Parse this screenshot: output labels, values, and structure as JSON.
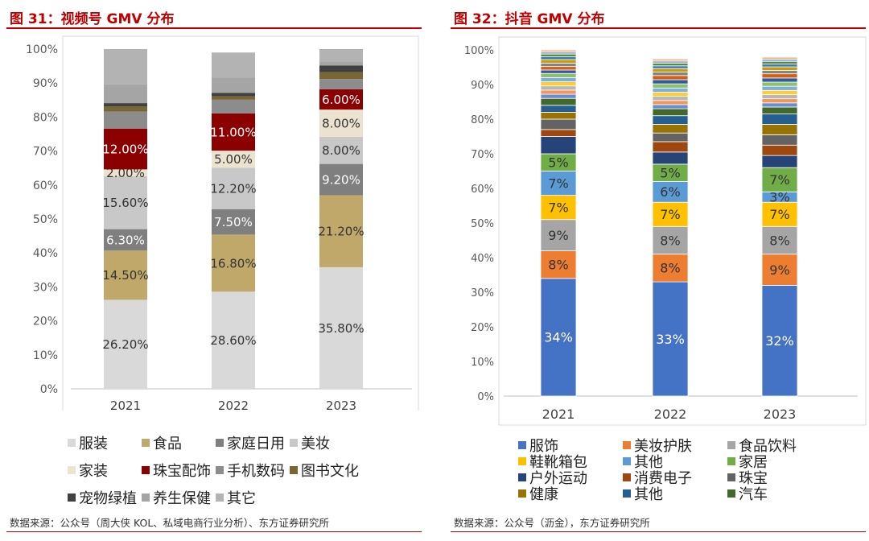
{
  "left": {
    "title": "图 31：视频号 GMV 分布",
    "source": "数据来源：公众号（周大侠 KOL、私域电商行业分析）、东方证券研究所",
    "legend": [
      "服装",
      "食品",
      "家庭日用",
      "美妆",
      "家装",
      "珠宝配饰",
      "手机数码",
      "图书文化",
      "宠物绿植",
      "养生保健",
      "其它"
    ],
    "chart_data": {
      "type": "bar",
      "stacked": true,
      "ylim": [
        0,
        100
      ],
      "yticks": [
        "0%",
        "10%",
        "20%",
        "30%",
        "40%",
        "50%",
        "60%",
        "70%",
        "80%",
        "90%",
        "100%"
      ],
      "categories": [
        "2021",
        "2022",
        "2023"
      ],
      "series": [
        {
          "name": "服装",
          "color": "#d9d9d9",
          "values": [
            26.2,
            28.6,
            35.8
          ],
          "labels": [
            "26.20%",
            "28.60%",
            "35.80%"
          ],
          "label_color": "#333333"
        },
        {
          "name": "食品",
          "color": "#bfa86a",
          "values": [
            14.5,
            16.8,
            21.2
          ],
          "labels": [
            "14.50%",
            "16.80%",
            "21.20%"
          ],
          "label_color": "#333333"
        },
        {
          "name": "家庭日用",
          "color": "#7f7f7f",
          "values": [
            6.3,
            7.5,
            9.2
          ],
          "labels": [
            "6.30%",
            "7.50%",
            "9.20%"
          ],
          "label_color": "#ffffff"
        },
        {
          "name": "美妆",
          "color": "#c8c8c8",
          "values": [
            15.6,
            12.2,
            8.0
          ],
          "labels": [
            "15.60%",
            "12.20%",
            "8.00%"
          ],
          "label_color": "#333333"
        },
        {
          "name": "家装",
          "color": "#ebe3cf",
          "values": [
            2.0,
            5.0,
            8.0
          ],
          "labels": [
            "2.00%",
            "5.00%",
            "8.00%"
          ],
          "label_color": "#333333"
        },
        {
          "name": "珠宝配饰",
          "color": "#8b0000",
          "values": [
            12.0,
            11.0,
            6.0
          ],
          "labels": [
            "12.00%",
            "11.00%",
            "6.00%"
          ],
          "label_color": "#ffffff"
        },
        {
          "name": "手机数码",
          "color": "#8c8c8c",
          "values": [
            5.0,
            4.0,
            3.0
          ],
          "labels": [
            "",
            "",
            ""
          ],
          "label_color": "#333333"
        },
        {
          "name": "图书文化",
          "color": "#7a6534",
          "values": [
            1.5,
            1.0,
            2.0
          ],
          "labels": [
            "",
            "",
            ""
          ],
          "label_color": "#333333"
        },
        {
          "name": "宠物绿植",
          "color": "#404040",
          "values": [
            1.0,
            1.0,
            2.0
          ],
          "labels": [
            "",
            "",
            ""
          ],
          "label_color": "#333333"
        },
        {
          "name": "养生保健",
          "color": "#a5a5a5",
          "values": [
            5.5,
            4.5,
            1.0
          ],
          "labels": [
            "",
            "",
            ""
          ],
          "label_color": "#333333"
        },
        {
          "name": "其它",
          "color": "#b3b3b3",
          "values": [
            10.4,
            7.4,
            3.8
          ],
          "labels": [
            "",
            "",
            ""
          ],
          "label_color": "#333333"
        }
      ]
    }
  },
  "right": {
    "title": "图 32：抖音 GMV 分布",
    "source": "数据来源：公众号（沥金），东方证券研究所",
    "legend": [
      "服饰",
      "美妆护肤",
      "食品饮料",
      "鞋靴箱包",
      "其他",
      "家居",
      "户外运动",
      "消费电子",
      "珠宝",
      "健康",
      "其他",
      "汽车"
    ],
    "chart_data": {
      "type": "bar",
      "stacked": true,
      "ylim": [
        0,
        100
      ],
      "yticks": [
        "0%",
        "10%",
        "20%",
        "30%",
        "40%",
        "50%",
        "60%",
        "70%",
        "80%",
        "90%",
        "100%"
      ],
      "categories": [
        "2021",
        "2022",
        "2023"
      ],
      "series": [
        {
          "name": "服饰",
          "color": "#4472c4",
          "values": [
            34,
            33,
            32
          ],
          "labels": [
            "34%",
            "33%",
            "32%"
          ],
          "label_color": "#ffffff"
        },
        {
          "name": "美妆护肤",
          "color": "#ed7d31",
          "values": [
            8,
            8,
            9
          ],
          "labels": [
            "8%",
            "8%",
            "9%"
          ],
          "label_color": "#333333"
        },
        {
          "name": "食品饮料",
          "color": "#a5a5a5",
          "values": [
            9,
            8,
            8
          ],
          "labels": [
            "9%",
            "8%",
            "8%"
          ],
          "label_color": "#333333"
        },
        {
          "name": "鞋靴箱包",
          "color": "#ffc000",
          "values": [
            7,
            7,
            7
          ],
          "labels": [
            "7%",
            "7%",
            "7%"
          ],
          "label_color": "#333333"
        },
        {
          "name": "其他",
          "color": "#5b9bd5",
          "values": [
            7,
            6,
            3
          ],
          "labels": [
            "7%",
            "6%",
            "3%"
          ],
          "label_color": "#333333"
        },
        {
          "name": "家居",
          "color": "#70ad47",
          "values": [
            5,
            5,
            7
          ],
          "labels": [
            "5%",
            "5%",
            "7%"
          ],
          "label_color": "#333333"
        },
        {
          "name": "户外运动",
          "color": "#264478",
          "values": [
            5,
            3.5,
            3.5
          ],
          "labels": [
            "",
            "",
            ""
          ],
          "label_color": "#ffffff"
        },
        {
          "name": "消费电子",
          "color": "#9e480e",
          "values": [
            2,
            3,
            3
          ],
          "labels": [
            "",
            "",
            ""
          ],
          "label_color": "#ffffff"
        },
        {
          "name": "珠宝",
          "color": "#636363",
          "values": [
            3,
            2.5,
            3
          ],
          "labels": [
            "",
            "",
            ""
          ],
          "label_color": "#ffffff"
        },
        {
          "name": "健康",
          "color": "#997300",
          "values": [
            2,
            2.5,
            3
          ],
          "labels": [
            "",
            "",
            ""
          ],
          "label_color": "#ffffff"
        },
        {
          "name": "其他",
          "color": "#255e91",
          "values": [
            2,
            2.5,
            3
          ],
          "labels": [
            "",
            "",
            ""
          ],
          "label_color": "#ffffff"
        },
        {
          "name": "汽车",
          "color": "#43682b",
          "values": [
            2,
            2,
            2
          ],
          "labels": [
            "",
            "",
            ""
          ],
          "label_color": "#ffffff"
        },
        {
          "name": "",
          "color": "#698ed0",
          "values": [
            1.2,
            1.2,
            1.2
          ],
          "labels": [
            "",
            "",
            ""
          ],
          "label_color": "#ffffff"
        },
        {
          "name": "",
          "color": "#f1975a",
          "values": [
            1.2,
            1.2,
            1.2
          ],
          "labels": [
            "",
            "",
            ""
          ],
          "label_color": "#ffffff"
        },
        {
          "name": "",
          "color": "#b7b7b7",
          "values": [
            1.2,
            1.2,
            1.2
          ],
          "labels": [
            "",
            "",
            ""
          ],
          "label_color": "#ffffff"
        },
        {
          "name": "",
          "color": "#ffcd33",
          "values": [
            1.2,
            1.2,
            1.2
          ],
          "labels": [
            "",
            "",
            ""
          ],
          "label_color": "#ffffff"
        },
        {
          "name": "",
          "color": "#7cafdd",
          "values": [
            1.2,
            1.2,
            1.2
          ],
          "labels": [
            "",
            "",
            ""
          ],
          "label_color": "#ffffff"
        },
        {
          "name": "",
          "color": "#8cc168",
          "values": [
            1.2,
            1.2,
            1.2
          ],
          "labels": [
            "",
            "",
            ""
          ],
          "label_color": "#ffffff"
        },
        {
          "name": "",
          "color": "#335aa1",
          "values": [
            1.0,
            1.2,
            1.2
          ],
          "labels": [
            "",
            "",
            ""
          ],
          "label_color": "#ffffff"
        },
        {
          "name": "",
          "color": "#d26012",
          "values": [
            1.0,
            1.2,
            1.2
          ],
          "labels": [
            "",
            "",
            ""
          ],
          "label_color": "#ffffff"
        },
        {
          "name": "",
          "color": "#848484",
          "values": [
            1.0,
            1.0,
            1.0
          ],
          "labels": [
            "",
            "",
            ""
          ],
          "label_color": "#ffffff"
        },
        {
          "name": "",
          "color": "#cc9a00",
          "values": [
            1.0,
            1.0,
            1.0
          ],
          "labels": [
            "",
            "",
            ""
          ],
          "label_color": "#ffffff"
        },
        {
          "name": "",
          "color": "#327dc2",
          "values": [
            0.8,
            0.8,
            0.8
          ],
          "labels": [
            "",
            "",
            ""
          ],
          "label_color": "#ffffff"
        },
        {
          "name": "",
          "color": "#5a8a39",
          "values": [
            0.8,
            0.8,
            0.8
          ],
          "labels": [
            "",
            "",
            ""
          ],
          "label_color": "#ffffff"
        },
        {
          "name": "",
          "color": "#8faadc",
          "values": [
            0.6,
            0.6,
            0.6
          ],
          "labels": [
            "",
            "",
            ""
          ],
          "label_color": "#ffffff"
        },
        {
          "name": "",
          "color": "#f4b183",
          "values": [
            0.6,
            0.6,
            0.6
          ],
          "labels": [
            "",
            "",
            ""
          ],
          "label_color": "#ffffff"
        }
      ]
    }
  }
}
